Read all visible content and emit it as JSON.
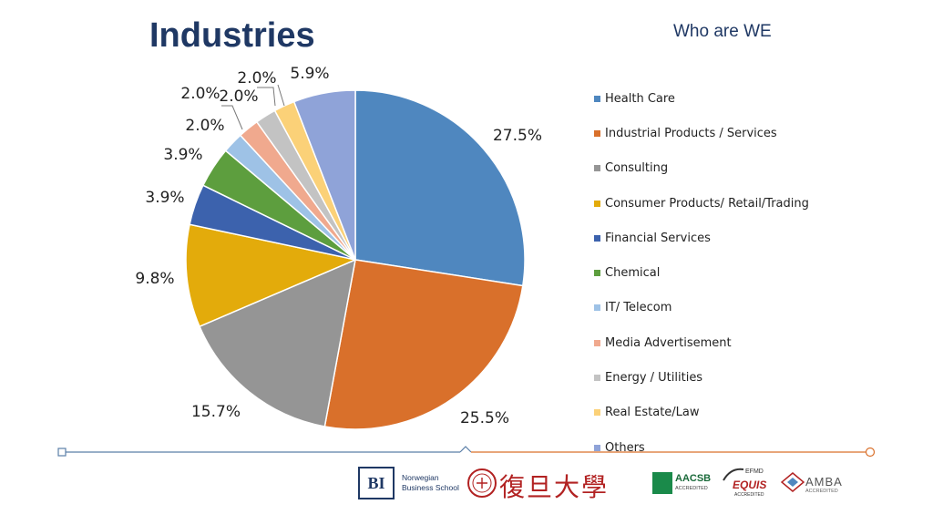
{
  "header": {
    "title": "Industries",
    "tagline": "Who are WE"
  },
  "chart_data": {
    "type": "pie",
    "title": "Industries",
    "start_angle_deg": 0,
    "direction": "clockwise",
    "legend_position": "right",
    "slices": [
      {
        "label": "Health Care",
        "value": 27.5,
        "display": "27.5%",
        "color": "#4f87bf"
      },
      {
        "label": "Industrial Products / Services",
        "value": 25.5,
        "display": "25.5%",
        "color": "#d9702b"
      },
      {
        "label": "Consulting",
        "value": 15.7,
        "display": "15.7%",
        "color": "#959595"
      },
      {
        "label": "Consumer Products/ Retail/Trading",
        "value": 9.8,
        "display": "9.8%",
        "color": "#e3ab0b"
      },
      {
        "label": "Financial Services",
        "value": 3.9,
        "display": "3.9%",
        "color": "#3c62ad"
      },
      {
        "label": "Chemical",
        "value": 3.9,
        "display": "3.9%",
        "color": "#5d9e3e"
      },
      {
        "label": "IT/ Telecom",
        "value": 2.0,
        "display": "2.0%",
        "color": "#9ec2e6"
      },
      {
        "label": "Media Advertisement",
        "value": 2.0,
        "display": "2.0%",
        "color": "#f0a98e"
      },
      {
        "label": "Energy / Utilities",
        "value": 2.0,
        "display": "2.0%",
        "color": "#c3c3c3"
      },
      {
        "label": "Real Estate/Law",
        "value": 2.0,
        "display": "2.0%",
        "color": "#fbd178"
      },
      {
        "label": "Others",
        "value": 5.9,
        "display": "5.9%",
        "color": "#8fa3d8"
      }
    ]
  },
  "footer": {
    "bi_mark": "BI",
    "bi_name_line1": "Norwegian",
    "bi_name_line2": "Business School",
    "fudan_name": "復旦大學",
    "aacsb_label": "AACSB",
    "aacsb_sub": "ACCREDITED",
    "equis_top": "EFMD",
    "equis_label": "EQUIS",
    "equis_sub": "ACCREDITED",
    "amba_label": "AMBA",
    "amba_sub": "ACCREDITED",
    "left_line_color": "#5b7fa8",
    "right_line_color": "#d9702b"
  }
}
